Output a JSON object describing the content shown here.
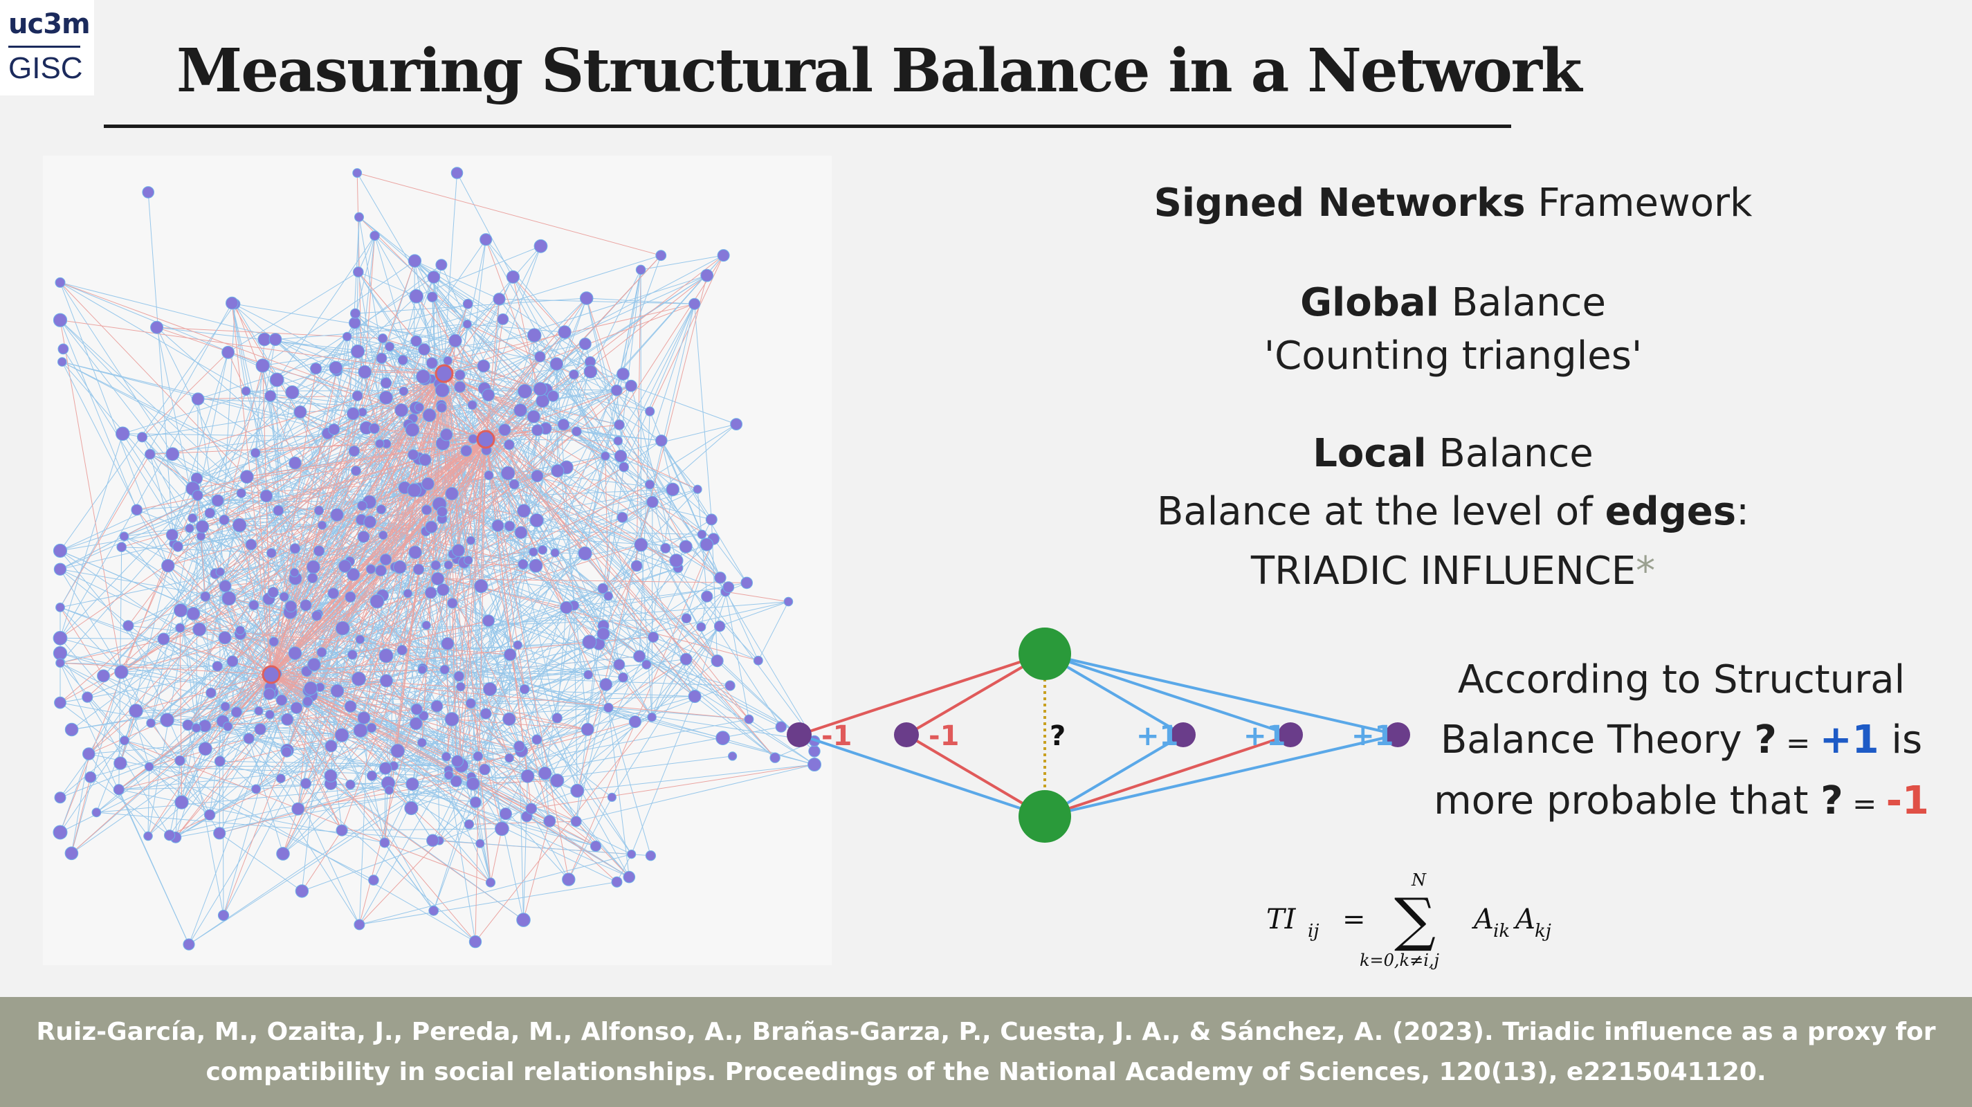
{
  "logo": {
    "top": "uc3m",
    "bottom": "GISC"
  },
  "title": "Measuring Structural Balance in a Network",
  "signed_networks": {
    "bold": "Signed Networks",
    "rest": " Framework"
  },
  "global_balance": {
    "bold": "Global",
    "rest": " Balance",
    "subtitle": "'Counting triangles'"
  },
  "local_balance": {
    "bold": "Local",
    "rest": " Balance",
    "line2_pre": "Balance at the level of ",
    "line2_bold": "edges",
    "line2_post": ":",
    "line3": "TRIADIC INFLUENCE",
    "asterisk": "*"
  },
  "diagram": {
    "question": "?",
    "labels": [
      "-1",
      "-1",
      "+1",
      "+1",
      "+1"
    ],
    "colors": {
      "positive": "#5aa8e8",
      "negative": "#e05a5a",
      "green_node": "#2a9a3a",
      "purple_node": "#6a3d8a",
      "dotted": "#c8a020"
    }
  },
  "theory": {
    "line1": "According to Structural",
    "line2_pre": "Balance Theory ",
    "q": "?",
    "eq": " = ",
    "plus_one": "+1",
    "line2_post": " is",
    "line3_pre": "more probable that ",
    "minus_one": "-1"
  },
  "formula": {
    "lhs": "TI",
    "lhs_sub": "ij",
    "equals": "=",
    "upper": "N",
    "lower": "k=0,k≠i,j",
    "term1": "A",
    "term1_sub": "ik",
    "term2": "A",
    "term2_sub": "kj"
  },
  "citation": {
    "line1": "Ruiz-García, M., Ozaita, J., Pereda, M., Alfonso, A., Brañas-Garza, P., Cuesta, J. A., & Sánchez, A. (2023). Triadic influence as a proxy for",
    "line2": "compatibility in social relationships. Proceedings of the National Academy of Sciences, 120(13), e2215041120."
  }
}
